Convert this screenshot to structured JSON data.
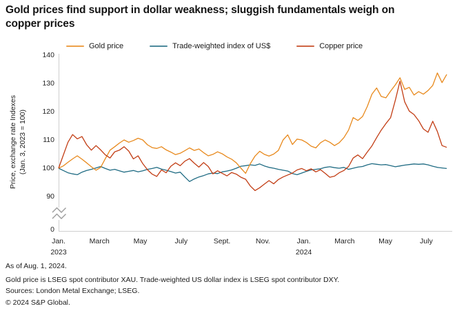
{
  "title": "Gold prices find support in dollar weakness; sluggish fundamentals weigh on copper prices",
  "footer": {
    "as_of": "As of Aug. 1, 2024.",
    "note": "Gold price is LSEG spot contributor XAU. Trade-weighted US dollar index is LSEG spot contributor DXY.",
    "sources": "Sources: London Metal Exchange; LSEG.",
    "copyright": "© 2024 S&P Global."
  },
  "chart_data": {
    "type": "line",
    "title": "Gold prices find support in dollar weakness; sluggish fundamentals weigh on copper prices",
    "ylabel_line1": "Price, exchange rate Indexes",
    "ylabel_line2": "(Jan. 3, 2023 = 100)",
    "legend_position": "top",
    "grid": false,
    "y_axis_break": true,
    "ylim_main": [
      88,
      141
    ],
    "y_ticks": [
      0,
      90,
      100,
      110,
      120,
      130,
      140
    ],
    "x_ticks": [
      {
        "label": "Jan.",
        "sub": "2023"
      },
      {
        "label": "March",
        "sub": ""
      },
      {
        "label": "May",
        "sub": ""
      },
      {
        "label": "July",
        "sub": ""
      },
      {
        "label": "Sept.",
        "sub": ""
      },
      {
        "label": "Nov.",
        "sub": ""
      },
      {
        "label": "Jan.",
        "sub": "2024"
      },
      {
        "label": "March",
        "sub": ""
      },
      {
        "label": "May",
        "sub": ""
      },
      {
        "label": "July",
        "sub": ""
      }
    ],
    "x_unit": "weekly samples, Jan. 3, 2023 to Aug. 1, 2024 (x tick spacing = 2 months)",
    "x_range_months": [
      0,
      19
    ],
    "axis_color": "#cfcfcf",
    "series": [
      {
        "name": "Gold price",
        "color": "#E8891C",
        "values": [
          100,
          100.8,
          102.1,
          103.3,
          104.4,
          103.2,
          101.9,
          100.5,
          99.3,
          100.3,
          103.4,
          106.4,
          107.6,
          108.9,
          110.0,
          109.2,
          109.8,
          110.6,
          110.0,
          108.3,
          107.3,
          107.0,
          107.6,
          106.5,
          105.7,
          104.8,
          105.3,
          106.2,
          107.2,
          106.3,
          106.8,
          105.5,
          104.4,
          104.9,
          105.8,
          105.1,
          104.0,
          103.2,
          101.9,
          100.0,
          98.2,
          101.6,
          104.3,
          106.0,
          104.9,
          104.3,
          105.0,
          106.3,
          110.0,
          111.8,
          108.4,
          110.3,
          110.0,
          109.1,
          107.8,
          107.2,
          109.0,
          110.0,
          109.2,
          108.0,
          109.0,
          110.8,
          113.5,
          117.9,
          116.9,
          118.3,
          121.8,
          126.2,
          128.4,
          125.4,
          124.9,
          127.3,
          129.5,
          132.0,
          127.9,
          128.6,
          125.9,
          127.1,
          126.2,
          127.5,
          129.3,
          133.7,
          130.3,
          133.2
        ]
      },
      {
        "name": "Trade-weighted index of US$",
        "color": "#1F6B83",
        "values": [
          100,
          99.2,
          98.4,
          98.0,
          97.7,
          98.6,
          99.2,
          99.6,
          100.1,
          100.6,
          99.9,
          99.3,
          99.6,
          99.1,
          98.6,
          98.9,
          99.2,
          98.7,
          99.1,
          99.6,
          99.9,
          100.3,
          99.7,
          99.3,
          98.8,
          98.3,
          98.6,
          96.9,
          95.3,
          96.2,
          96.9,
          97.4,
          98.0,
          98.3,
          98.1,
          98.7,
          99.0,
          99.4,
          100.0,
          100.7,
          100.9,
          101.2,
          101.0,
          101.5,
          100.8,
          100.3,
          100.0,
          99.6,
          99.3,
          99.0,
          98.1,
          97.7,
          98.3,
          98.9,
          99.4,
          99.6,
          99.8,
          100.3,
          100.5,
          100.2,
          100.0,
          100.3,
          99.6,
          100.0,
          100.4,
          100.6,
          101.2,
          101.6,
          101.4,
          101.2,
          101.3,
          100.9,
          100.5,
          100.8,
          101.1,
          101.3,
          101.5,
          101.4,
          101.5,
          101.2,
          100.7,
          100.3,
          100.1,
          99.9
        ]
      },
      {
        "name": "Copper price",
        "color": "#C23D14",
        "values": [
          100,
          104.6,
          109.2,
          111.9,
          110.4,
          111.2,
          108.3,
          106.4,
          108.0,
          106.5,
          104.7,
          103.6,
          105.8,
          106.4,
          107.6,
          106.1,
          103.3,
          104.4,
          101.6,
          99.5,
          97.9,
          97.1,
          99.4,
          98.4,
          100.7,
          101.9,
          100.9,
          102.5,
          103.4,
          101.8,
          100.4,
          102.0,
          100.6,
          98.0,
          99.1,
          98.2,
          97.3,
          98.5,
          97.9,
          96.8,
          96.1,
          93.7,
          92.1,
          93.1,
          94.4,
          95.6,
          94.5,
          96.0,
          96.9,
          97.6,
          98.3,
          99.4,
          99.9,
          99.1,
          99.8,
          98.7,
          99.5,
          98.2,
          96.8,
          97.2,
          98.4,
          99.2,
          100.6,
          103.6,
          104.7,
          103.4,
          105.7,
          107.9,
          110.8,
          113.5,
          115.8,
          117.9,
          124.0,
          130.8,
          123.5,
          120.2,
          119.0,
          116.8,
          113.9,
          112.7,
          116.6,
          113.0,
          108.0,
          107.4
        ]
      }
    ]
  }
}
